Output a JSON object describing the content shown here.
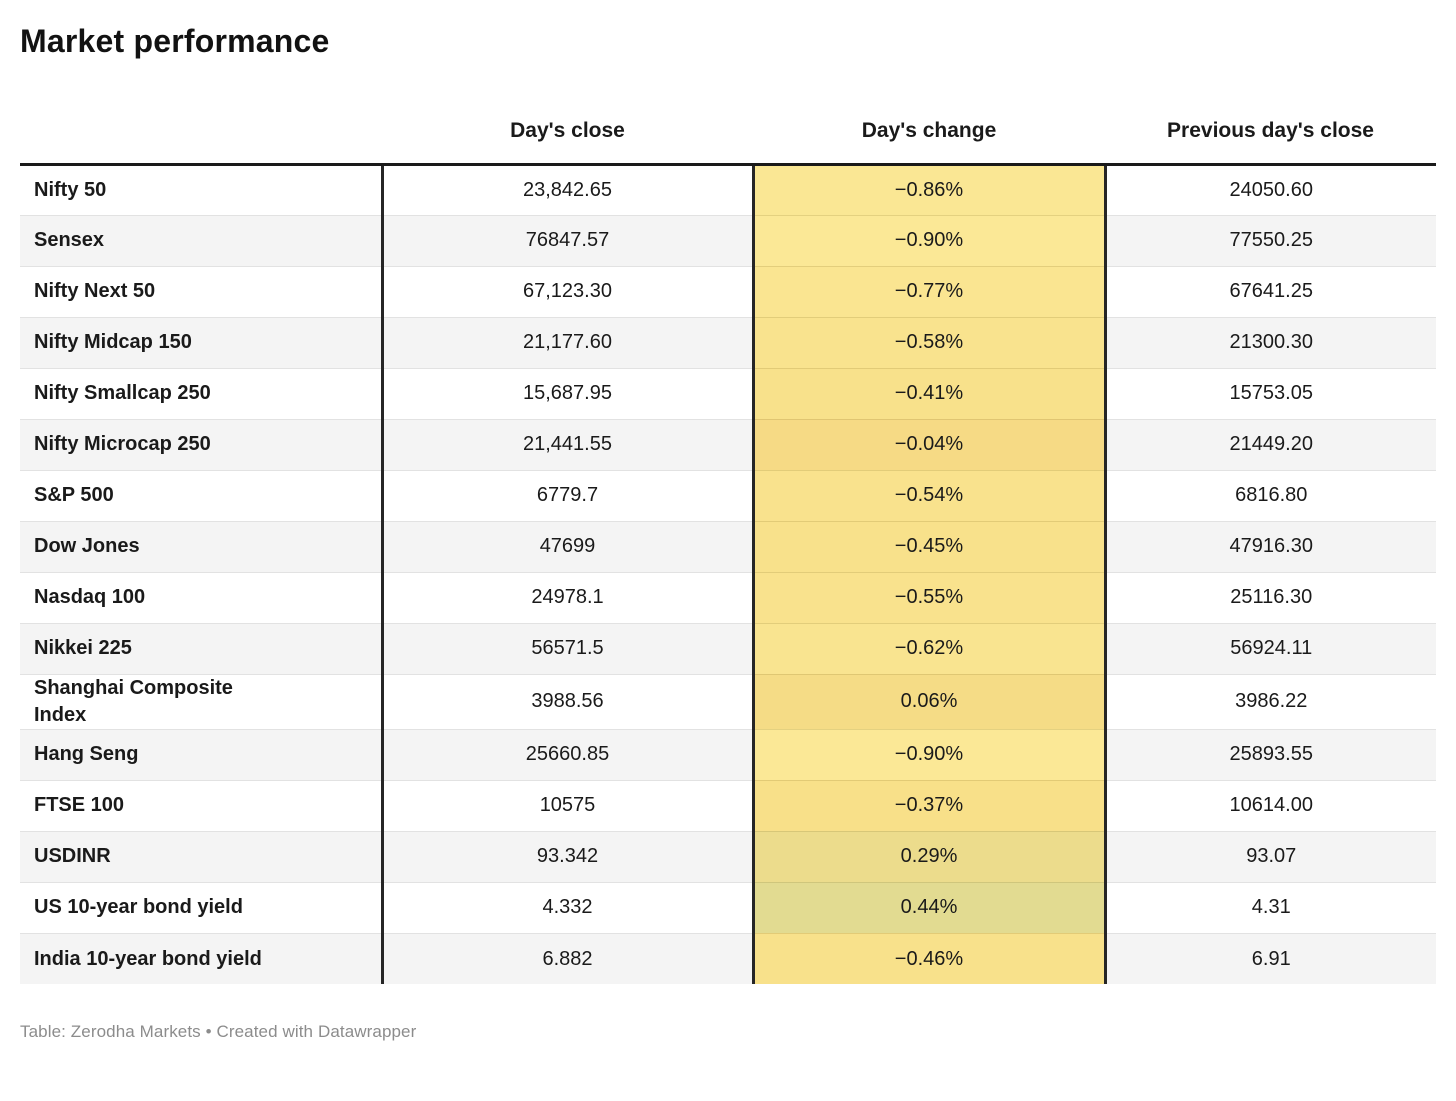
{
  "title": "Market performance",
  "footer": "Table: Zerodha Markets • Created with Datawrapper",
  "colors": {
    "header_border": "#1a1a1a",
    "column_border": "#262626",
    "row_stripe": "#f4f4f4",
    "row_separator": "#e2e2e2",
    "text": "#1a1a1a",
    "footer_text": "#8c8c8c",
    "heatmap_negative": "#FBE896",
    "heatmap_near_zero": "#F5D985",
    "heatmap_positive": "#E2DB91"
  },
  "chart_data": {
    "type": "table",
    "columns": [
      "",
      "Day's close",
      "Day's change",
      "Previous day's close"
    ],
    "rows": [
      {
        "label": "Nifty 50",
        "close": "23,842.65",
        "change": "−0.86%",
        "change_value": -0.86,
        "change_bg": "#FAE794",
        "prev": "24050.60"
      },
      {
        "label": "Sensex",
        "close": "76847.57",
        "change": "−0.90%",
        "change_value": -0.9,
        "change_bg": "#FBE896",
        "prev": "77550.25"
      },
      {
        "label": "Nifty Next 50",
        "close": "67,123.30",
        "change": "−0.77%",
        "change_value": -0.77,
        "change_bg": "#FAE591",
        "prev": "67641.25"
      },
      {
        "label": "Nifty Midcap 150",
        "close": "21,177.60",
        "change": "−0.58%",
        "change_value": -0.58,
        "change_bg": "#F9E38E",
        "prev": "21300.30"
      },
      {
        "label": "Nifty Smallcap 250",
        "close": "15,687.95",
        "change": "−0.41%",
        "change_value": -0.41,
        "change_bg": "#F8E18B",
        "prev": "15753.05"
      },
      {
        "label": "Nifty Microcap 250",
        "close": "21,441.55",
        "change": "−0.04%",
        "change_value": -0.04,
        "change_bg": "#F6DA85",
        "prev": "21449.20"
      },
      {
        "label": "S&P 500",
        "close": "6779.7",
        "change": "−0.54%",
        "change_value": -0.54,
        "change_bg": "#F9E28D",
        "prev": "6816.80"
      },
      {
        "label": "Dow Jones",
        "close": "47699",
        "change": "−0.45%",
        "change_value": -0.45,
        "change_bg": "#F8E18B",
        "prev": "47916.30"
      },
      {
        "label": "Nasdaq 100",
        "close": "24978.1",
        "change": "−0.55%",
        "change_value": -0.55,
        "change_bg": "#F9E28D",
        "prev": "25116.30"
      },
      {
        "label": "Nikkei 225",
        "close": "56571.5",
        "change": "−0.62%",
        "change_value": -0.62,
        "change_bg": "#F9E490",
        "prev": "56924.11"
      },
      {
        "label": "Shanghai Composite Index",
        "close": "3988.56",
        "change": "0.06%",
        "change_value": 0.06,
        "change_bg": "#F5DC86",
        "prev": "3986.22",
        "wrap": true
      },
      {
        "label": "Hang Seng",
        "close": "25660.85",
        "change": "−0.90%",
        "change_value": -0.9,
        "change_bg": "#FBE896",
        "prev": "25893.55"
      },
      {
        "label": "FTSE 100",
        "close": "10575",
        "change": "−0.37%",
        "change_value": -0.37,
        "change_bg": "#F8E089",
        "prev": "10614.00"
      },
      {
        "label": "USDINR",
        "close": "93.342",
        "change": "0.29%",
        "change_value": 0.29,
        "change_bg": "#ECDC8C",
        "prev": "93.07"
      },
      {
        "label": "US 10-year bond yield",
        "close": "4.332",
        "change": "0.44%",
        "change_value": 0.44,
        "change_bg": "#E2DB91",
        "prev": "4.31"
      },
      {
        "label": "India 10-year bond yield",
        "close": "6.882",
        "change": "−0.46%",
        "change_value": -0.46,
        "change_bg": "#F8E18B",
        "prev": "6.91"
      }
    ]
  }
}
